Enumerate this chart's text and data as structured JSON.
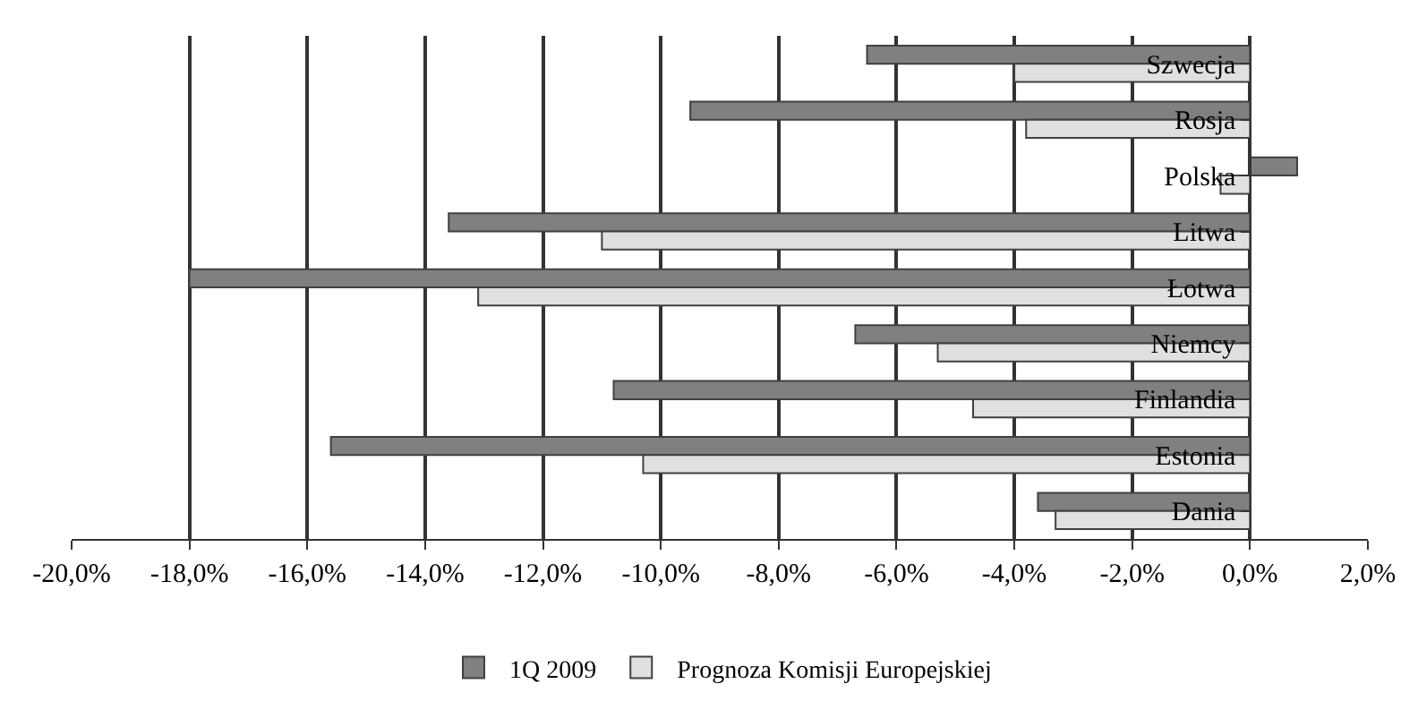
{
  "chart_data": {
    "type": "bar",
    "orientation": "horizontal",
    "categories": [
      "Szwecja",
      "Rosja",
      "Polska",
      "Litwa",
      "Łotwa",
      "Niemcy",
      "Finlandia",
      "Estonia",
      "Dania"
    ],
    "series": [
      {
        "name": "1Q 2009",
        "color": "#808080",
        "values": [
          -6.5,
          -9.5,
          0.8,
          -13.6,
          -18.0,
          -6.7,
          -10.8,
          -15.6,
          -3.6
        ]
      },
      {
        "name": "Prognoza Komisji Europejskiej",
        "color": "#e0e0e0",
        "values": [
          -4.0,
          -3.8,
          -0.5,
          -11.0,
          -13.1,
          -5.3,
          -4.7,
          -10.3,
          -3.3
        ]
      }
    ],
    "xlim": [
      -20,
      2
    ],
    "xticks": [
      {
        "value": -20,
        "label": "-20,0%"
      },
      {
        "value": -18,
        "label": "-18,0%"
      },
      {
        "value": -16,
        "label": "-16,0%"
      },
      {
        "value": -14,
        "label": "-14,0%"
      },
      {
        "value": -12,
        "label": "-12,0%"
      },
      {
        "value": -10,
        "label": "-10,0%"
      },
      {
        "value": -8,
        "label": "-8,0%"
      },
      {
        "value": -6,
        "label": "-6,0%"
      },
      {
        "value": -4,
        "label": "-4,0%"
      },
      {
        "value": -2,
        "label": "-2,0%"
      },
      {
        "value": 0,
        "label": "0,0%"
      },
      {
        "value": 2,
        "label": "2,0%"
      }
    ],
    "grid": "x",
    "legend": "bottom"
  }
}
